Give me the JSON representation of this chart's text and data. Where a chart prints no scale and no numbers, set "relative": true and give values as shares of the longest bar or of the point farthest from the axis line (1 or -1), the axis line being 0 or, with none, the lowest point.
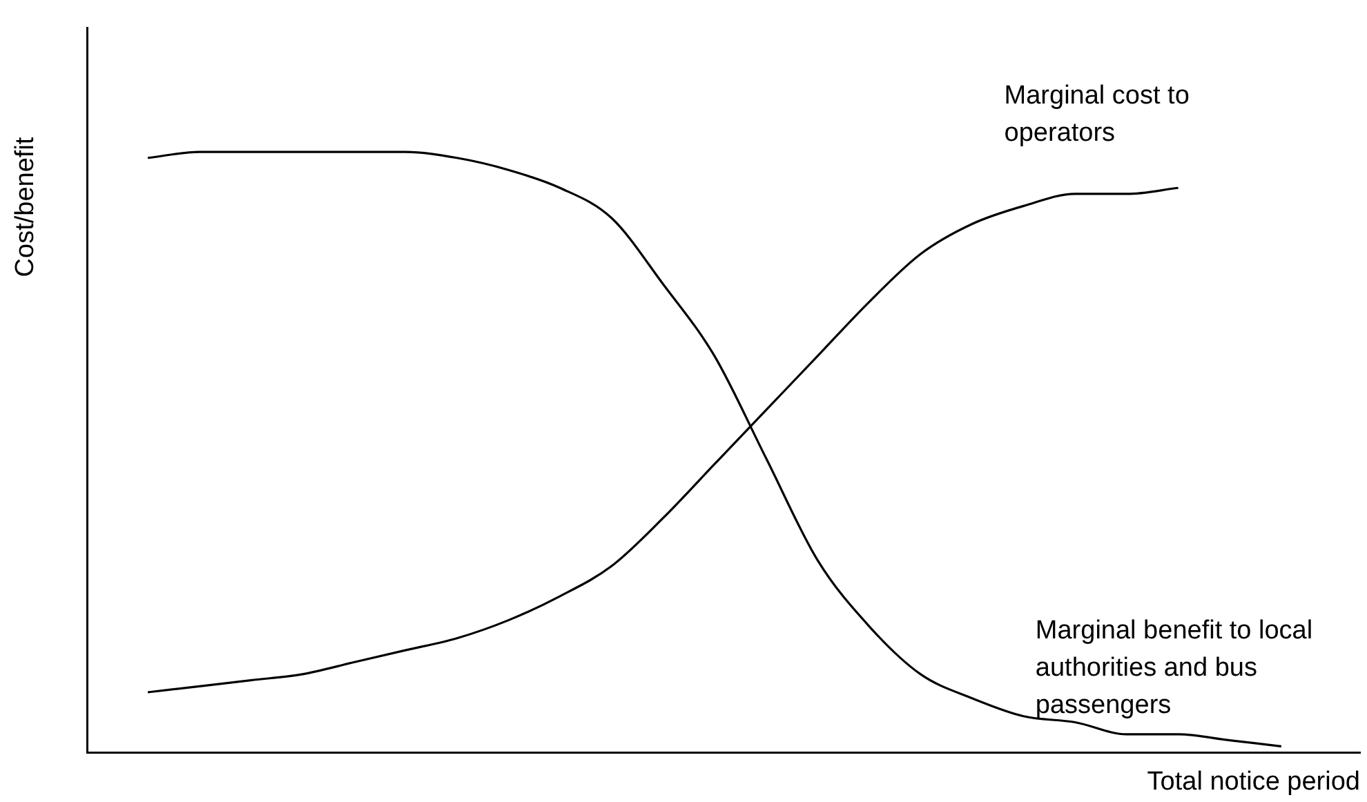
{
  "chart_data": {
    "type": "line",
    "relative": true,
    "xlabel": "Total notice period",
    "ylabel": "Cost/benefit",
    "marker": "none",
    "categories": [
      null,
      null,
      null,
      null,
      null,
      null,
      null,
      null,
      null,
      null,
      null,
      null,
      null,
      null,
      null,
      null,
      null,
      null,
      null,
      null,
      null,
      null,
      null
    ],
    "series": [
      {
        "name": "Marginal cost to operators",
        "color": "#000000",
        "values": [
          0.1,
          0.11,
          0.12,
          0.13,
          0.15,
          0.17,
          0.19,
          0.22,
          0.26,
          0.31,
          0.39,
          0.48,
          0.57,
          0.66,
          0.75,
          0.83,
          0.88,
          0.91,
          0.93,
          0.93,
          0.94,
          null,
          null
        ]
      },
      {
        "name": "Marginal benefit to local authorities and bus passengers",
        "color": "#000000",
        "values": [
          0.99,
          1.0,
          1.0,
          1.0,
          1.0,
          1.0,
          0.99,
          0.97,
          0.94,
          0.89,
          0.78,
          0.66,
          0.49,
          0.32,
          0.21,
          0.13,
          0.09,
          0.06,
          0.05,
          0.03,
          0.03,
          0.02,
          0.01
        ]
      }
    ]
  }
}
